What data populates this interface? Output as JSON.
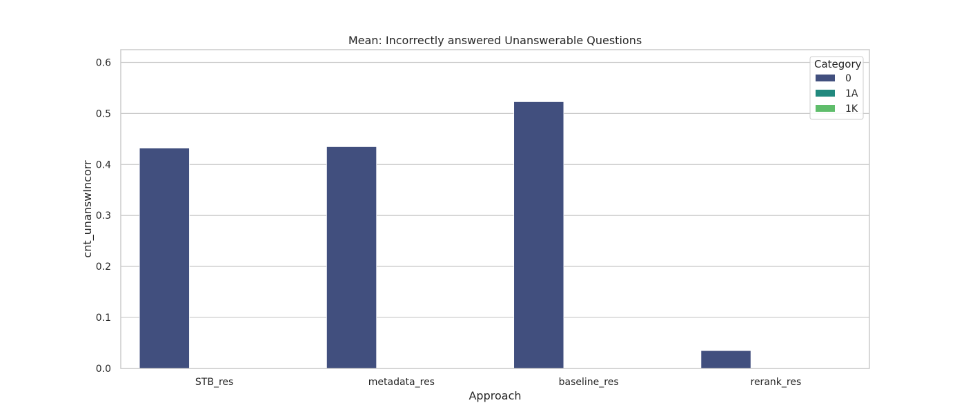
{
  "chart_data": {
    "type": "bar",
    "title": "Mean: Incorrectly answered Unanswerable Questions",
    "xlabel": "Approach",
    "ylabel": "cnt_unanswIncorr",
    "categories": [
      "STB_res",
      "metadata_res",
      "baseline_res",
      "rerank_res"
    ],
    "series": [
      {
        "name": "0",
        "color": "#414f7e",
        "values": [
          0.432,
          0.435,
          0.523,
          0.035
        ]
      },
      {
        "name": "1A",
        "color": "#21897e",
        "values": [
          0,
          0,
          0,
          0
        ]
      },
      {
        "name": "1K",
        "color": "#5fbd6b",
        "values": [
          0,
          0,
          0,
          0
        ]
      }
    ],
    "ylim": [
      0,
      0.625
    ],
    "yticks": [
      0.0,
      0.1,
      0.2,
      0.3,
      0.4,
      0.5,
      0.6
    ],
    "ytick_labels": [
      "0.0",
      "0.1",
      "0.2",
      "0.3",
      "0.4",
      "0.5",
      "0.6"
    ],
    "grid": true,
    "legend": {
      "title": "Category",
      "placement": "top-right"
    }
  }
}
